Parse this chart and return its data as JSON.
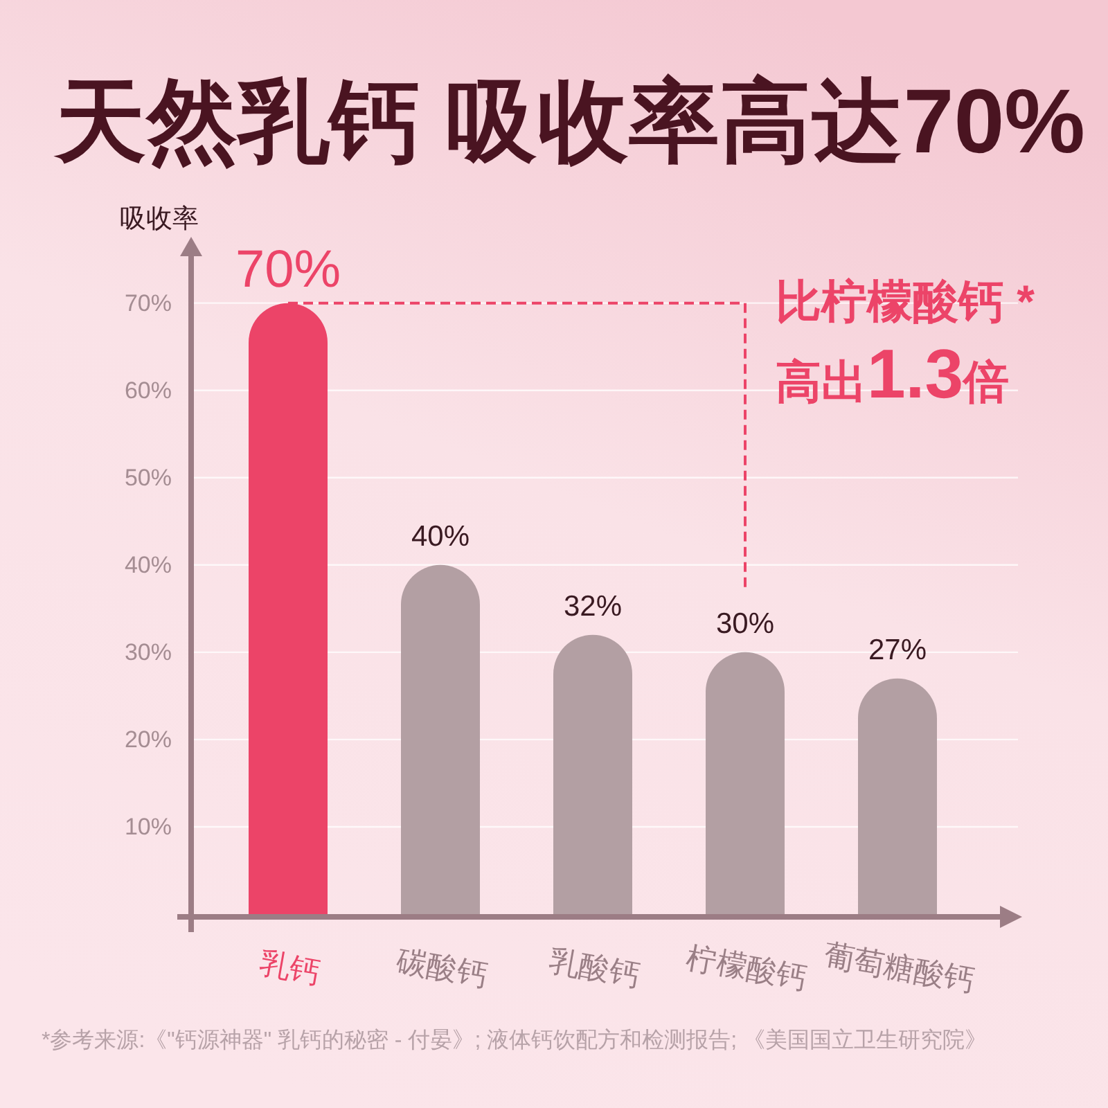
{
  "chart_data": {
    "type": "bar",
    "title": "天然乳钙 吸收率高达70%",
    "ylabel": "吸收率",
    "categories": [
      "乳钙",
      "碳酸钙",
      "乳酸钙",
      "柠檬酸钙",
      "葡萄糖酸钙"
    ],
    "values": [
      70,
      40,
      32,
      30,
      27
    ],
    "colors": [
      "#ec4468",
      "#b39fa3",
      "#b39fa3",
      "#b39fa3",
      "#b39fa3"
    ],
    "value_labels": [
      "70%",
      "40%",
      "32%",
      "30%",
      "27%"
    ],
    "ylim": [
      0,
      76
    ],
    "yticks": [
      {
        "value": 10,
        "label": "10%"
      },
      {
        "value": 20,
        "label": "20%"
      },
      {
        "value": 30,
        "label": "30%"
      },
      {
        "value": 40,
        "label": "40%"
      },
      {
        "value": 50,
        "label": "50%"
      },
      {
        "value": 60,
        "label": "60%"
      },
      {
        "value": 70,
        "label": "70%"
      }
    ],
    "grid": "y",
    "annotations": [
      "比柠檬酸钙 *\n高出1.3倍",
      "*参考来源:《\"钙源神器\" 乳钙的秘密 - 付晏》; 液体钙饮配方和检测报告; 《美国国立卫生研究院》"
    ]
  }
}
